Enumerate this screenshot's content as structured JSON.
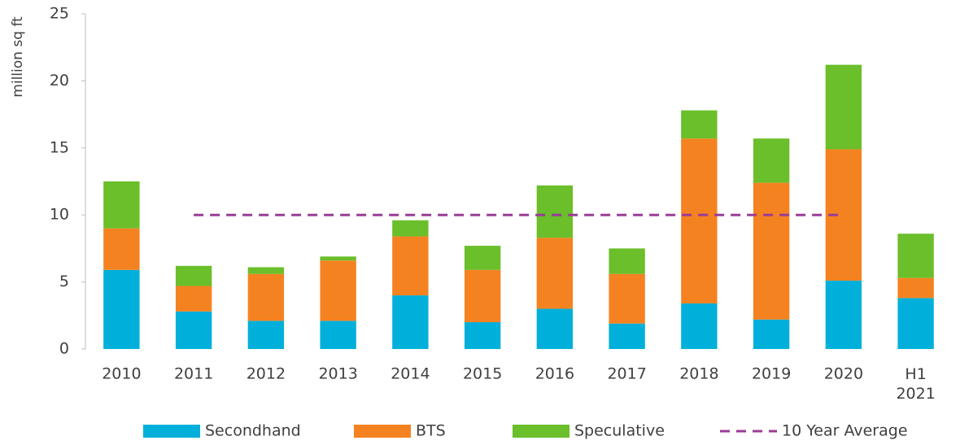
{
  "chart_data": {
    "type": "bar",
    "stacked": true,
    "y_label": "million sq ft",
    "categories": [
      "2010",
      "2011",
      "2012",
      "2013",
      "2014",
      "2015",
      "2016",
      "2017",
      "2018",
      "2019",
      "2020",
      "H1 2021"
    ],
    "series": [
      {
        "name": "Secondhand",
        "color": "#00b0da",
        "values": [
          5.9,
          2.8,
          2.1,
          2.1,
          4.0,
          2.0,
          3.0,
          1.9,
          3.4,
          2.2,
          5.1,
          3.8
        ]
      },
      {
        "name": "BTS",
        "color": "#f58220",
        "values": [
          3.1,
          1.9,
          3.5,
          4.5,
          4.4,
          3.9,
          5.3,
          3.7,
          12.3,
          10.2,
          9.8,
          1.5
        ]
      },
      {
        "name": "Speculative",
        "color": "#6abf2a",
        "values": [
          3.5,
          1.5,
          0.5,
          0.3,
          1.2,
          1.8,
          3.9,
          1.9,
          2.1,
          3.3,
          6.3,
          3.3
        ]
      },
      {
        "name": "10 Year Average",
        "color": "#9b3c97",
        "kind": "line",
        "dashed": true,
        "values": [
          null,
          10,
          10,
          10,
          10,
          10,
          10,
          10,
          10,
          10,
          10,
          null
        ]
      }
    ],
    "ylim": [
      0,
      25
    ],
    "yticks": [
      0,
      5,
      10,
      15,
      20,
      25
    ],
    "grid": false,
    "legend": "bottom"
  }
}
